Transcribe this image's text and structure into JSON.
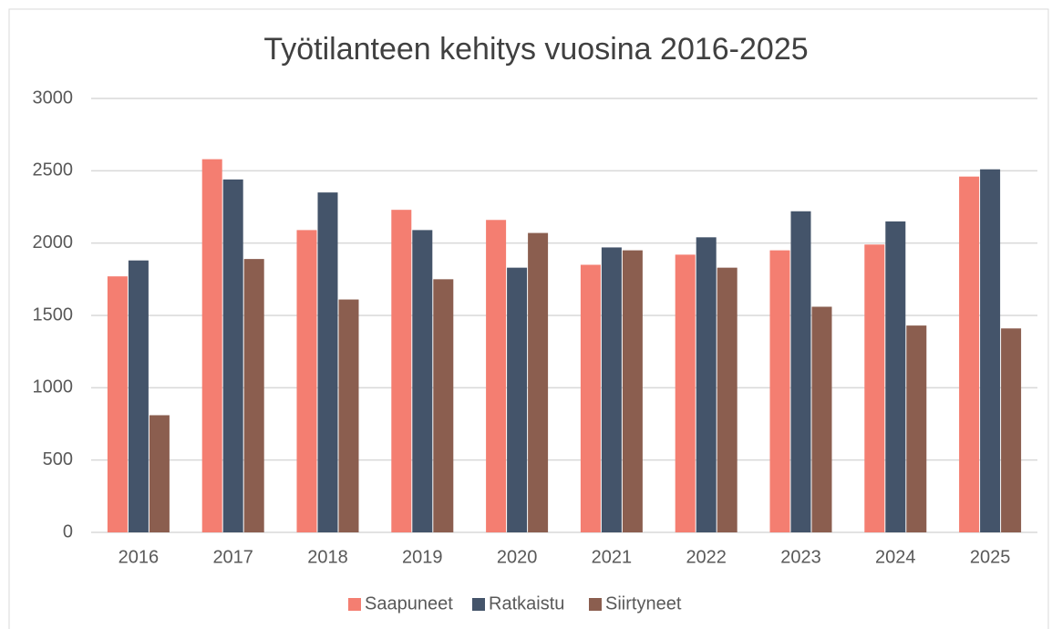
{
  "chart_data": {
    "type": "bar",
    "title": "Työtilanteen kehitys vuosina 2016-2025",
    "categories": [
      "2016",
      "2017",
      "2018",
      "2019",
      "2020",
      "2021",
      "2022",
      "2023",
      "2024",
      "2025"
    ],
    "series": [
      {
        "name": "Saapuneet",
        "color": "#f47e71",
        "values": [
          1770,
          2580,
          2090,
          2230,
          2160,
          1850,
          1920,
          1950,
          1990,
          2460
        ]
      },
      {
        "name": "Ratkaistu",
        "color": "#44546a",
        "values": [
          1880,
          2440,
          2350,
          2090,
          1830,
          1970,
          2040,
          2220,
          2150,
          2510
        ]
      },
      {
        "name": "Siirtyneet",
        "color": "#8b5e4f",
        "values": [
          810,
          1890,
          1610,
          1750,
          2070,
          1950,
          1830,
          1560,
          1430,
          1410
        ]
      }
    ],
    "ylim": [
      0,
      3000
    ],
    "yticks": [
      0,
      500,
      1000,
      1500,
      2000,
      2500,
      3000
    ],
    "grid": true,
    "legend": "bottom"
  }
}
